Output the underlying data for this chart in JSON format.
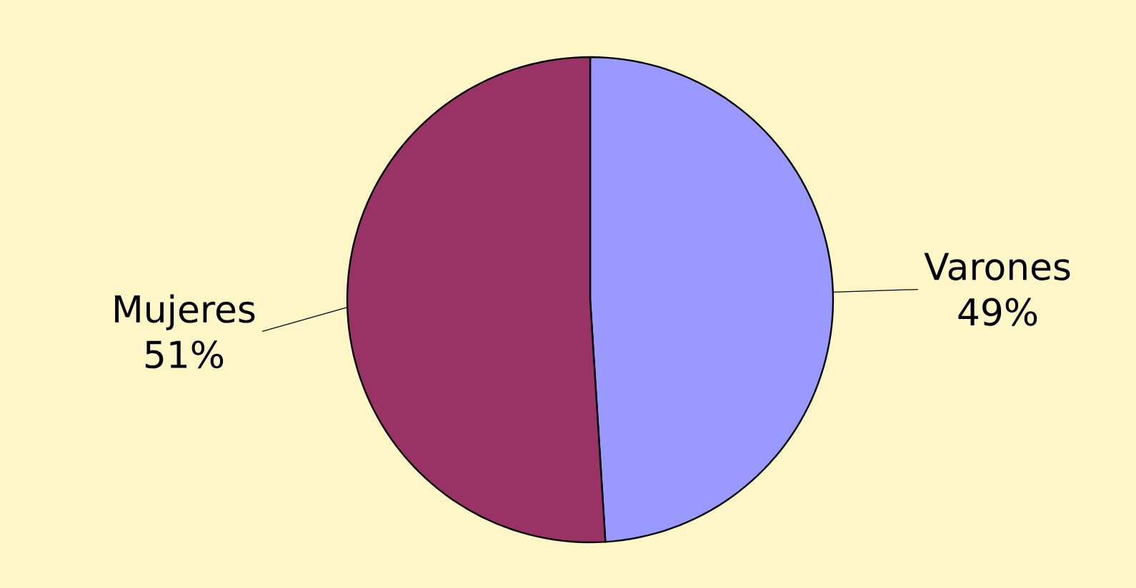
{
  "chart_data": {
    "type": "pie",
    "categories": [
      "Varones",
      "Mujeres"
    ],
    "values": [
      49,
      51
    ],
    "value_labels": [
      "49%",
      "51%"
    ],
    "colors": [
      "#9999ff",
      "#993366"
    ]
  }
}
